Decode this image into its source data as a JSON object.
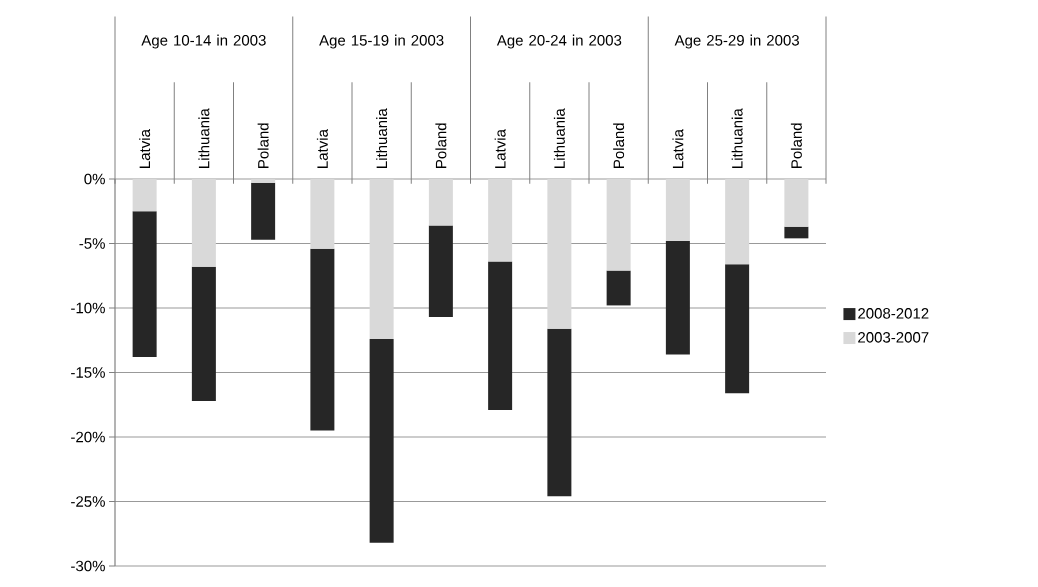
{
  "chart_data": {
    "type": "bar",
    "stacked": true,
    "categories": [
      "Latvia",
      "Lithuania",
      "Poland",
      "Latvia",
      "Lithuania",
      "Poland",
      "Latvia",
      "Lithuania",
      "Poland",
      "Latvia",
      "Lithuania",
      "Poland"
    ],
    "annotations": [
      "Age 10-14 in 2003",
      "Age 15-19 in 2003",
      "Age 20-24 in 2003",
      "Age 25-29 in 2003"
    ],
    "series": [
      {
        "name": "2003-2007",
        "color": "#d9d9d9",
        "values": [
          -2.5,
          -6.8,
          -0.3,
          -5.4,
          -12.4,
          -3.6,
          -6.4,
          -11.6,
          -7.1,
          -4.8,
          -6.6,
          -3.7
        ]
      },
      {
        "name": "2008-2012",
        "color": "#262626",
        "values": [
          -11.3,
          -10.4,
          -4.4,
          -14.1,
          -15.8,
          -7.1,
          -11.5,
          -13.0,
          -2.7,
          -8.8,
          -10.0,
          -0.9
        ]
      }
    ],
    "ylim": [
      -30,
      0
    ],
    "yticks": [
      {
        "value": 0,
        "label": "0%"
      },
      {
        "value": -5,
        "label": "-5%"
      },
      {
        "value": -10,
        "label": "-10%"
      },
      {
        "value": -15,
        "label": "-15%"
      },
      {
        "value": -20,
        "label": "-20%"
      },
      {
        "value": -25,
        "label": "-25%"
      },
      {
        "value": -30,
        "label": "-30%"
      }
    ],
    "grid": "y",
    "legend": "right"
  }
}
